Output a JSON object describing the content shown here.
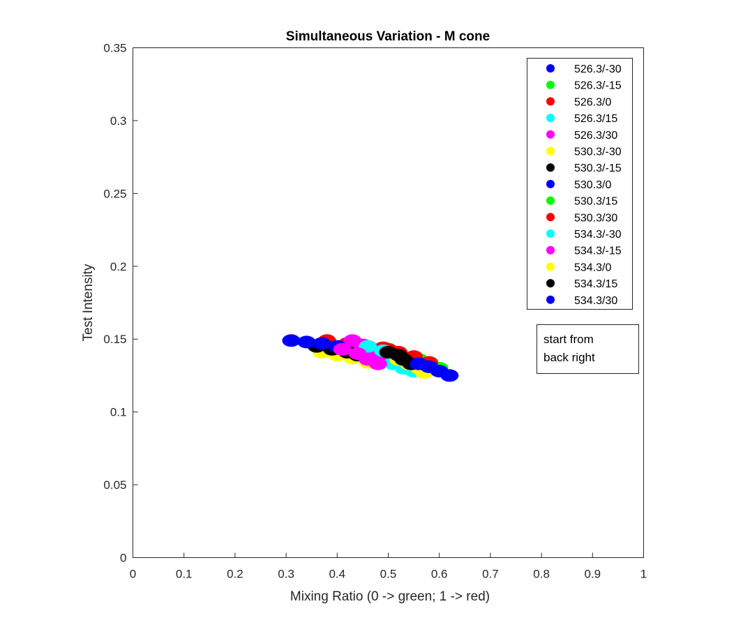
{
  "chart_data": {
    "type": "scatter",
    "title": "Simultaneous Variation - M cone",
    "xlabel": "Mixing Ratio (0 -> green; 1 -> red)",
    "ylabel": "Test Intensity",
    "xlim": [
      0,
      1
    ],
    "ylim": [
      0,
      0.35
    ],
    "xticks": [
      0,
      0.1,
      0.2,
      0.3,
      0.4,
      0.5,
      0.6,
      0.7,
      0.8,
      0.9,
      1
    ],
    "xtick_labels": [
      "0",
      "0.1",
      "0.2",
      "0.3",
      "0.4",
      "0.5",
      "0.6",
      "0.7",
      "0.8",
      "0.9",
      "1"
    ],
    "yticks": [
      0,
      0.05,
      0.1,
      0.15,
      0.2,
      0.25,
      0.3,
      0.35
    ],
    "ytick_labels": [
      "0",
      "0.05",
      "0.1",
      "0.15",
      "0.2",
      "0.25",
      "0.3",
      "0.35"
    ],
    "grid": false,
    "legend_position": "top-right",
    "annotation": [
      "start from",
      "back right"
    ],
    "series": [
      {
        "name": "526.3/-30",
        "color": "#0000ff",
        "x": [
          0.4,
          0.44,
          0.48,
          0.52
        ],
        "y": [
          0.142,
          0.14,
          0.138,
          0.136
        ]
      },
      {
        "name": "526.3/-15",
        "color": "#00ff00",
        "x": [
          0.44,
          0.48,
          0.52,
          0.56
        ],
        "y": [
          0.144,
          0.142,
          0.139,
          0.136
        ]
      },
      {
        "name": "526.3/0",
        "color": "#ff0000",
        "x": [
          0.38,
          0.42,
          0.46,
          0.5
        ],
        "y": [
          0.149,
          0.147,
          0.145,
          0.143
        ]
      },
      {
        "name": "526.3/15",
        "color": "#00ffff",
        "x": [
          0.48,
          0.51,
          0.53,
          0.55
        ],
        "y": [
          0.136,
          0.133,
          0.13,
          0.128
        ]
      },
      {
        "name": "526.3/30",
        "color": "#ff00ff",
        "x": [
          0.43,
          0.45,
          0.47,
          0.49
        ],
        "y": [
          0.149,
          0.146,
          0.143,
          0.14
        ]
      },
      {
        "name": "530.3/-30",
        "color": "#ffff00",
        "x": [
          0.37,
          0.4,
          0.43,
          0.46
        ],
        "y": [
          0.141,
          0.139,
          0.137,
          0.134
        ]
      },
      {
        "name": "530.3/-15",
        "color": "#000000",
        "x": [
          0.36,
          0.39,
          0.42,
          0.44
        ],
        "y": [
          0.145,
          0.143,
          0.141,
          0.139
        ]
      },
      {
        "name": "530.3/0",
        "color": "#0000ff",
        "x": [
          0.31,
          0.34,
          0.37,
          0.4
        ],
        "y": [
          0.149,
          0.148,
          0.147,
          0.145
        ]
      },
      {
        "name": "530.3/15",
        "color": "#00ff00",
        "x": [
          0.51,
          0.54,
          0.57,
          0.6
        ],
        "y": [
          0.14,
          0.137,
          0.134,
          0.13
        ]
      },
      {
        "name": "530.3/30",
        "color": "#ff0000",
        "x": [
          0.49,
          0.52,
          0.55,
          0.58
        ],
        "y": [
          0.144,
          0.141,
          0.138,
          0.134
        ]
      },
      {
        "name": "534.3/-30",
        "color": "#00ffff",
        "x": [
          0.46,
          0.49,
          0.51,
          0.53
        ],
        "y": [
          0.145,
          0.142,
          0.139,
          0.136
        ]
      },
      {
        "name": "534.3/-15",
        "color": "#ff00ff",
        "x": [
          0.41,
          0.44,
          0.46,
          0.48
        ],
        "y": [
          0.143,
          0.14,
          0.136,
          0.133
        ]
      },
      {
        "name": "534.3/0",
        "color": "#ffff00",
        "x": [
          0.52,
          0.54,
          0.56,
          0.57
        ],
        "y": [
          0.136,
          0.133,
          0.13,
          0.127
        ]
      },
      {
        "name": "534.3/15",
        "color": "#000000",
        "x": [
          0.5,
          0.52,
          0.53,
          0.545
        ],
        "y": [
          0.141,
          0.139,
          0.136,
          0.133
        ]
      },
      {
        "name": "534.3/30",
        "color": "#0000ff",
        "x": [
          0.56,
          0.58,
          0.6,
          0.62
        ],
        "y": [
          0.133,
          0.131,
          0.128,
          0.125
        ]
      }
    ]
  }
}
